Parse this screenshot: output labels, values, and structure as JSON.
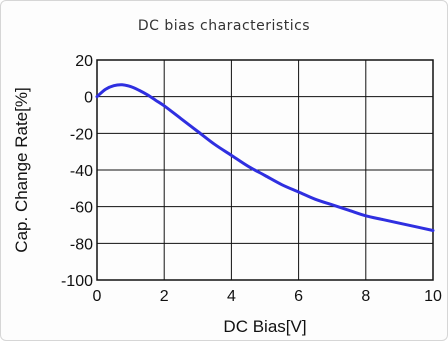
{
  "chart_data": {
    "type": "line",
    "title": "DC bias characteristics",
    "xlabel": "DC Bias[V]",
    "ylabel": "Cap. Change Rate[%]",
    "xlim": [
      0,
      10
    ],
    "ylim": [
      -100,
      20
    ],
    "xticks": [
      "0",
      "2",
      "4",
      "6",
      "8",
      "10"
    ],
    "yticks": [
      "20",
      "0",
      "-20",
      "-40",
      "-60",
      "-80",
      "-100"
    ],
    "grid": true,
    "series": [
      {
        "color": "#2f2fe0",
        "x": [
          0,
          0.25,
          0.5,
          0.75,
          1.0,
          1.25,
          1.5,
          1.75,
          2.0,
          2.5,
          3.0,
          3.5,
          4.0,
          4.5,
          5.0,
          5.5,
          6.0,
          6.5,
          7.0,
          7.5,
          8.0,
          8.5,
          9.0,
          9.5,
          10.0
        ],
        "y": [
          0,
          4,
          6,
          6.5,
          5.5,
          3.5,
          1,
          -2,
          -5,
          -12,
          -19,
          -26,
          -32,
          -38,
          -43,
          -48,
          -52,
          -56,
          -59,
          -62,
          -65,
          -67,
          -69,
          -71,
          -73
        ]
      }
    ]
  }
}
